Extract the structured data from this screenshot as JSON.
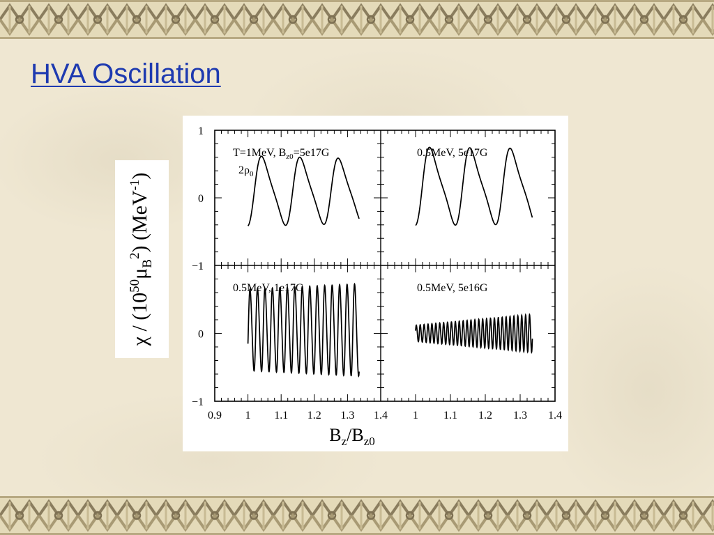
{
  "slide": {
    "title": "HVA Oscillation",
    "colors": {
      "title": "#1e3ab0",
      "background": "#efe7d2",
      "border_dark": "#8a7d5e",
      "border_light": "#d8ccaa"
    }
  },
  "chart_data": {
    "type": "line",
    "grid": false,
    "shared_xlabel": {
      "b": "B",
      "sub1": "z",
      "slash": "/B",
      "sub2": "z0"
    },
    "shared_ylabel": {
      "pre": "χ / (10",
      "exp": "50",
      "mu": "μ",
      "muSub": "B",
      "muSup": "2",
      "mid": ") (MeV",
      "mevExp": "-1",
      "post": ")"
    },
    "y_ticks": [
      "1",
      "0",
      "−1"
    ],
    "panels": [
      {
        "label": "T=1MeV, B",
        "label_sub": "z0",
        "label_rest": "=5e17G",
        "label2": "2ρ",
        "label2_sub": "0",
        "xlim": [
          0.9,
          1.4
        ],
        "ylim": [
          -1,
          1
        ],
        "x_ticks": [],
        "y_ticks": [
          "1",
          "0",
          "−1"
        ],
        "signal": {
          "x_start": 1.0,
          "x_end": 1.335,
          "period": 0.1155,
          "amp_start": 0.52,
          "amp_end": 0.48,
          "offset": 0.1,
          "phase": -1.05,
          "skew": 0.45
        }
      },
      {
        "label": "0.5MeV, 5e17G",
        "xlim": [
          0.9,
          1.4
        ],
        "ylim": [
          -1,
          1
        ],
        "x_ticks": [],
        "y_ticks": [],
        "signal": {
          "x_start": 1.0,
          "x_end": 1.335,
          "period": 0.1155,
          "amp_start": 0.58,
          "amp_end": 0.56,
          "offset": 0.17,
          "phase": -1.05,
          "skew": 0.5
        }
      },
      {
        "label": "0.5MeV, 1e17G",
        "xlim": [
          0.9,
          1.4
        ],
        "ylim": [
          -1,
          1
        ],
        "x_ticks": [
          "0.9",
          "1",
          "1.1",
          "1.2",
          "1.3",
          "1.4"
        ],
        "y_ticks": [
          "1",
          "0",
          "−1"
        ],
        "signal": {
          "x_start": 1.0,
          "x_end": 1.335,
          "period": 0.0225,
          "amp_start": 0.6,
          "amp_end": 0.68,
          "offset": 0.05,
          "phase": -0.3,
          "skew": 0.15
        }
      },
      {
        "label": "0.5MeV, 5e16G",
        "xlim": [
          0.9,
          1.4
        ],
        "ylim": [
          -1,
          1
        ],
        "x_ticks": [
          "1",
          "1.1",
          "1.2",
          "1.3",
          "1.4"
        ],
        "y_ticks": [],
        "signal": {
          "x_start": 1.0,
          "x_end": 1.335,
          "period": 0.0112,
          "amp_start": 0.12,
          "amp_end": 0.28,
          "offset": 0.0,
          "phase": 0.3,
          "skew": 0.1
        }
      }
    ]
  }
}
